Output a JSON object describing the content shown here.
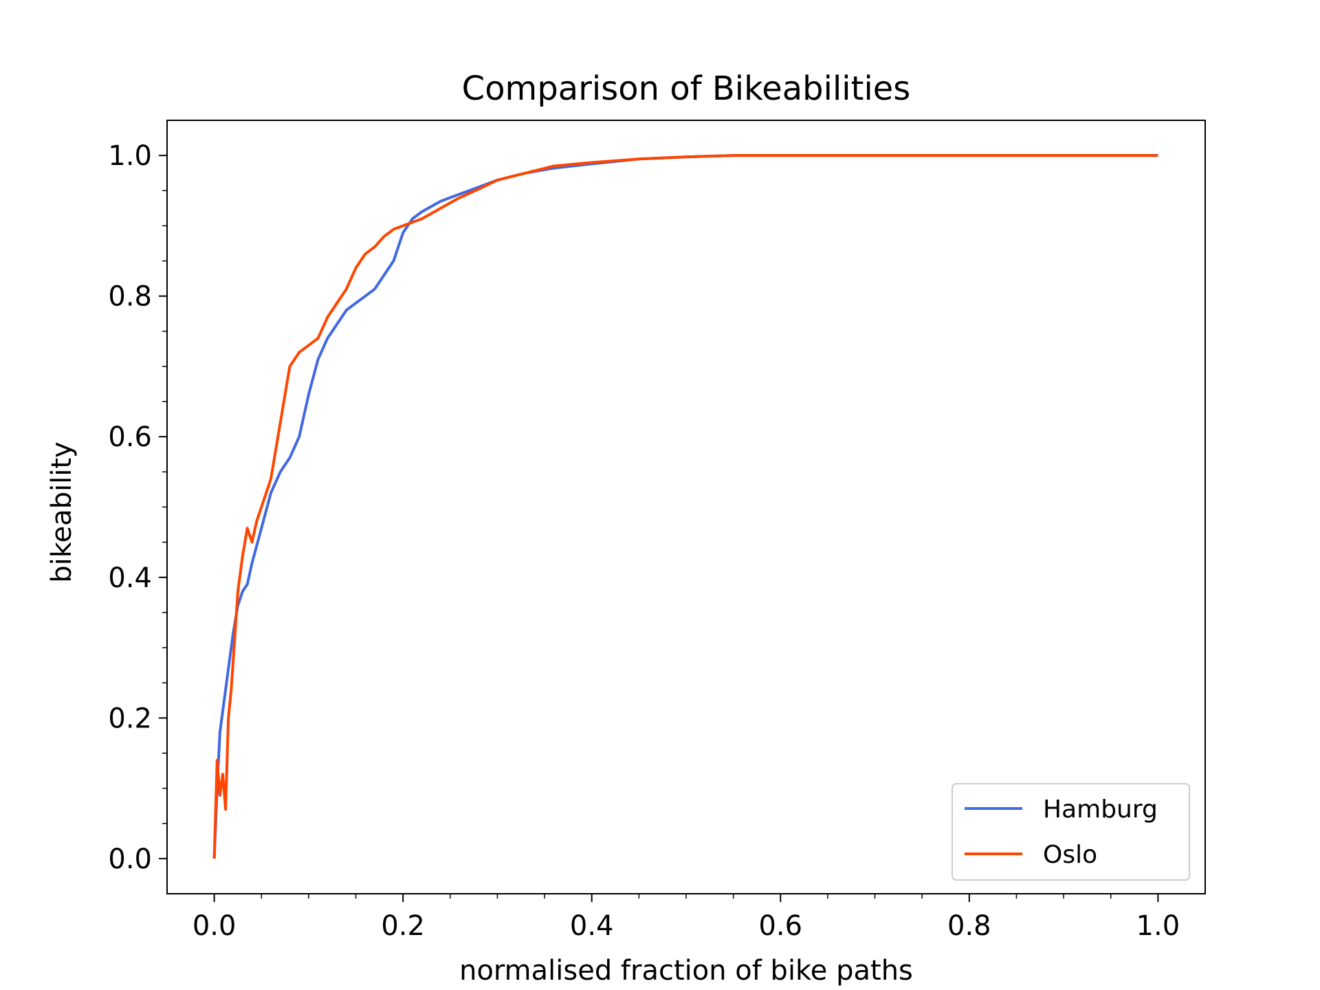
{
  "chart_data": {
    "type": "line",
    "title": "Comparison of Bikeabilities",
    "xlabel": "normalised fraction of bike paths",
    "ylabel": "bikeability",
    "xlim": [
      -0.05,
      1.05
    ],
    "ylim": [
      -0.05,
      1.05
    ],
    "xticks": [
      0.0,
      0.2,
      0.4,
      0.6,
      0.8,
      1.0
    ],
    "xtick_labels": [
      "0.0",
      "0.2",
      "0.4",
      "0.6",
      "0.8",
      "1.0"
    ],
    "yticks": [
      0.0,
      0.2,
      0.4,
      0.6,
      0.8,
      1.0
    ],
    "ytick_labels": [
      "0.0",
      "0.2",
      "0.4",
      "0.6",
      "0.8",
      "1.0"
    ],
    "grid": false,
    "legend_position": "lower-right",
    "series": [
      {
        "name": "Hamburg",
        "color": "#4169e1",
        "x": [
          0.0,
          0.003,
          0.006,
          0.01,
          0.015,
          0.02,
          0.025,
          0.03,
          0.035,
          0.04,
          0.05,
          0.06,
          0.07,
          0.08,
          0.09,
          0.1,
          0.11,
          0.12,
          0.13,
          0.14,
          0.15,
          0.16,
          0.17,
          0.18,
          0.19,
          0.2,
          0.21,
          0.22,
          0.24,
          0.26,
          0.28,
          0.3,
          0.33,
          0.36,
          0.4,
          0.45,
          0.5,
          0.55,
          0.6,
          0.7,
          0.8,
          0.9,
          1.0
        ],
        "y": [
          0.0,
          0.1,
          0.18,
          0.22,
          0.27,
          0.32,
          0.36,
          0.38,
          0.39,
          0.42,
          0.47,
          0.52,
          0.55,
          0.57,
          0.6,
          0.66,
          0.71,
          0.74,
          0.76,
          0.78,
          0.79,
          0.8,
          0.81,
          0.83,
          0.85,
          0.89,
          0.91,
          0.92,
          0.935,
          0.945,
          0.955,
          0.965,
          0.975,
          0.982,
          0.988,
          0.995,
          0.998,
          1.0,
          1.0,
          1.0,
          1.0,
          1.0,
          1.0
        ]
      },
      {
        "name": "Oslo",
        "color": "#ff4500",
        "x": [
          0.0,
          0.003,
          0.006,
          0.009,
          0.012,
          0.015,
          0.018,
          0.021,
          0.025,
          0.03,
          0.035,
          0.04,
          0.045,
          0.05,
          0.06,
          0.07,
          0.08,
          0.09,
          0.1,
          0.11,
          0.12,
          0.13,
          0.14,
          0.15,
          0.16,
          0.17,
          0.18,
          0.19,
          0.2,
          0.22,
          0.24,
          0.26,
          0.28,
          0.3,
          0.33,
          0.36,
          0.4,
          0.45,
          0.5,
          0.55,
          0.6,
          0.7,
          0.8,
          0.9,
          1.0
        ],
        "y": [
          0.0,
          0.14,
          0.09,
          0.12,
          0.07,
          0.2,
          0.24,
          0.3,
          0.38,
          0.43,
          0.47,
          0.45,
          0.48,
          0.5,
          0.54,
          0.62,
          0.7,
          0.72,
          0.73,
          0.74,
          0.77,
          0.79,
          0.81,
          0.84,
          0.86,
          0.87,
          0.885,
          0.895,
          0.9,
          0.91,
          0.925,
          0.94,
          0.952,
          0.965,
          0.975,
          0.985,
          0.99,
          0.995,
          0.998,
          1.0,
          1.0,
          1.0,
          1.0,
          1.0,
          1.0
        ]
      }
    ]
  }
}
